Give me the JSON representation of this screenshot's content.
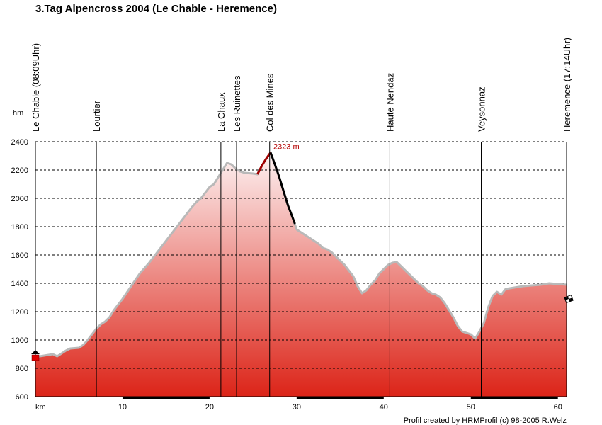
{
  "chart_data": {
    "type": "area",
    "title": "3.Tag Alpencross 2004 (Le Chable - Heremence)",
    "xlabel": "km",
    "ylabel": "hm",
    "xlim": [
      0,
      61
    ],
    "ylim": [
      600,
      2400
    ],
    "x_ticks": [
      10,
      20,
      30,
      40,
      50,
      60
    ],
    "y_ticks": [
      600,
      800,
      1000,
      1200,
      1400,
      1600,
      1800,
      2000,
      2200,
      2400
    ],
    "grid": true,
    "profile": [
      [
        0,
        880
      ],
      [
        1,
        890
      ],
      [
        2,
        900
      ],
      [
        2.5,
        885
      ],
      [
        3,
        905
      ],
      [
        3.5,
        925
      ],
      [
        4,
        940
      ],
      [
        5,
        945
      ],
      [
        5.5,
        965
      ],
      [
        6,
        1000
      ],
      [
        6.5,
        1040
      ],
      [
        7,
        1080
      ],
      [
        7.5,
        1110
      ],
      [
        8,
        1130
      ],
      [
        8.5,
        1160
      ],
      [
        9,
        1210
      ],
      [
        10,
        1290
      ],
      [
        11,
        1380
      ],
      [
        12,
        1470
      ],
      [
        13,
        1540
      ],
      [
        14,
        1620
      ],
      [
        15,
        1700
      ],
      [
        16,
        1780
      ],
      [
        17,
        1860
      ],
      [
        18,
        1940
      ],
      [
        18.5,
        1975
      ],
      [
        19,
        2000
      ],
      [
        19.5,
        2040
      ],
      [
        20,
        2080
      ],
      [
        20.5,
        2100
      ],
      [
        21,
        2150
      ],
      [
        21.5,
        2200
      ],
      [
        22,
        2250
      ],
      [
        22.5,
        2240
      ],
      [
        23,
        2210
      ],
      [
        23.5,
        2190
      ],
      [
        24,
        2180
      ],
      [
        25,
        2175
      ],
      [
        25.5,
        2170
      ],
      [
        26,
        2230
      ],
      [
        26.5,
        2280
      ],
      [
        27,
        2323
      ],
      [
        27.5,
        2240
      ],
      [
        28,
        2150
      ],
      [
        28.5,
        2050
      ],
      [
        29,
        1950
      ],
      [
        29.5,
        1870
      ],
      [
        30,
        1780
      ],
      [
        30.5,
        1760
      ],
      [
        31,
        1740
      ],
      [
        31.5,
        1720
      ],
      [
        32,
        1700
      ],
      [
        32.5,
        1680
      ],
      [
        33,
        1650
      ],
      [
        33.5,
        1640
      ],
      [
        34,
        1620
      ],
      [
        34.5,
        1590
      ],
      [
        35,
        1560
      ],
      [
        35.5,
        1530
      ],
      [
        36,
        1490
      ],
      [
        36.5,
        1450
      ],
      [
        37,
        1380
      ],
      [
        37.5,
        1330
      ],
      [
        38,
        1350
      ],
      [
        38.5,
        1390
      ],
      [
        39,
        1420
      ],
      [
        39.5,
        1470
      ],
      [
        40,
        1500
      ],
      [
        40.5,
        1530
      ],
      [
        41,
        1545
      ],
      [
        41.5,
        1550
      ],
      [
        42,
        1520
      ],
      [
        42.5,
        1490
      ],
      [
        43,
        1460
      ],
      [
        43.5,
        1430
      ],
      [
        44,
        1400
      ],
      [
        44.5,
        1380
      ],
      [
        45,
        1350
      ],
      [
        45.5,
        1330
      ],
      [
        46,
        1320
      ],
      [
        46.5,
        1300
      ],
      [
        47,
        1260
      ],
      [
        47.5,
        1210
      ],
      [
        48,
        1160
      ],
      [
        48.5,
        1100
      ],
      [
        49,
        1060
      ],
      [
        49.5,
        1050
      ],
      [
        50,
        1040
      ],
      [
        50.5,
        1010
      ],
      [
        51,
        1060
      ],
      [
        51.5,
        1120
      ],
      [
        52,
        1230
      ],
      [
        52.5,
        1310
      ],
      [
        53,
        1340
      ],
      [
        53.5,
        1320
      ],
      [
        54,
        1360
      ],
      [
        55,
        1370
      ],
      [
        56,
        1380
      ],
      [
        57,
        1385
      ],
      [
        58,
        1390
      ],
      [
        59,
        1400
      ],
      [
        60,
        1395
      ],
      [
        61,
        1390
      ]
    ],
    "highlight": {
      "climb": [
        [
          25.5,
          2170
        ],
        [
          26,
          2230
        ],
        [
          26.5,
          2280
        ],
        [
          27,
          2323
        ]
      ],
      "descent": [
        [
          27,
          2323
        ],
        [
          27.5,
          2240
        ],
        [
          28,
          2150
        ],
        [
          28.5,
          2050
        ],
        [
          29,
          1950
        ],
        [
          29.5,
          1870
        ],
        [
          29.8,
          1820
        ]
      ]
    },
    "peak": {
      "x": 27,
      "y": 2323,
      "label": "2323 m"
    },
    "waypoints": [
      {
        "label": "Le Chable (08:09Uhr)",
        "x": 0
      },
      {
        "label": "Lourtier",
        "x": 7
      },
      {
        "label": "La Chaux",
        "x": 21.3
      },
      {
        "label": "Les Ruinettes",
        "x": 23.1
      },
      {
        "label": "Col des Mines",
        "x": 26.9
      },
      {
        "label": "Haute Nendaz",
        "x": 40.7
      },
      {
        "label": "Veysonnaz",
        "x": 51.2
      },
      {
        "label": "Heremence (17:14Uhr)",
        "x": 61
      }
    ],
    "credit": "Profil created by HRMProfil (c) 98-2005 R.Welz",
    "colors": {
      "top": "#fdf2f2",
      "bottom": "#dc2418",
      "outline": "#b9b9b9",
      "climb": "#a00000",
      "descent": "#000000"
    }
  }
}
